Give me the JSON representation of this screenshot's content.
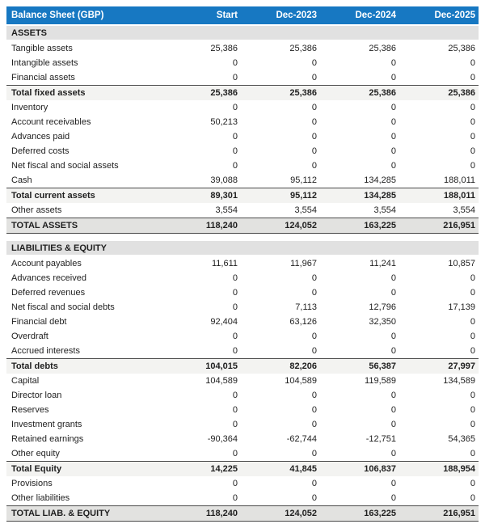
{
  "colors": {
    "header-bg": "#1778c2",
    "header-fg": "#ffffff",
    "section-bg": "#e1e1e1",
    "subtotal-bg": "#f3f3f1",
    "total-bg": "#e2e2e0",
    "rule-dark": "#4a4a4a"
  },
  "table": {
    "title": "Balance Sheet (GBP)",
    "columns": [
      "Start",
      "Dec-2023",
      "Dec-2024",
      "Dec-2025"
    ],
    "sections": [
      {
        "name": "ASSETS",
        "rows": [
          {
            "label": "Tangible assets",
            "type": "item",
            "values": [
              "25,386",
              "25,386",
              "25,386",
              "25,386"
            ]
          },
          {
            "label": "Intangible assets",
            "type": "item",
            "values": [
              "0",
              "0",
              "0",
              "0"
            ]
          },
          {
            "label": "Financial assets",
            "type": "item",
            "values": [
              "0",
              "0",
              "0",
              "0"
            ]
          },
          {
            "label": "Total fixed assets",
            "type": "subtotal",
            "values": [
              "25,386",
              "25,386",
              "25,386",
              "25,386"
            ]
          },
          {
            "label": "Inventory",
            "type": "item",
            "values": [
              "0",
              "0",
              "0",
              "0"
            ]
          },
          {
            "label": "Account receivables",
            "type": "item",
            "values": [
              "50,213",
              "0",
              "0",
              "0"
            ]
          },
          {
            "label": "Advances paid",
            "type": "item",
            "values": [
              "0",
              "0",
              "0",
              "0"
            ]
          },
          {
            "label": "Deferred costs",
            "type": "item",
            "values": [
              "0",
              "0",
              "0",
              "0"
            ]
          },
          {
            "label": "Net fiscal and social assets",
            "type": "item",
            "values": [
              "0",
              "0",
              "0",
              "0"
            ]
          },
          {
            "label": "Cash",
            "type": "item",
            "values": [
              "39,088",
              "95,112",
              "134,285",
              "188,011"
            ]
          },
          {
            "label": "Total current assets",
            "type": "subtotal",
            "values": [
              "89,301",
              "95,112",
              "134,285",
              "188,011"
            ]
          },
          {
            "label": "Other assets",
            "type": "item",
            "values": [
              "3,554",
              "3,554",
              "3,554",
              "3,554"
            ]
          },
          {
            "label": "TOTAL ASSETS",
            "type": "total",
            "values": [
              "118,240",
              "124,052",
              "163,225",
              "216,951"
            ]
          }
        ]
      },
      {
        "name": "LIABILITIES & EQUITY",
        "rows": [
          {
            "label": "Account payables",
            "type": "item",
            "values": [
              "11,611",
              "11,967",
              "11,241",
              "10,857"
            ]
          },
          {
            "label": "Advances received",
            "type": "item",
            "values": [
              "0",
              "0",
              "0",
              "0"
            ]
          },
          {
            "label": "Deferred revenues",
            "type": "item",
            "values": [
              "0",
              "0",
              "0",
              "0"
            ]
          },
          {
            "label": "Net fiscal and social debts",
            "type": "item",
            "values": [
              "0",
              "7,113",
              "12,796",
              "17,139"
            ]
          },
          {
            "label": "Financial debt",
            "type": "item",
            "values": [
              "92,404",
              "63,126",
              "32,350",
              "0"
            ]
          },
          {
            "label": "Overdraft",
            "type": "item",
            "values": [
              "0",
              "0",
              "0",
              "0"
            ]
          },
          {
            "label": "Accrued interests",
            "type": "item",
            "values": [
              "0",
              "0",
              "0",
              "0"
            ]
          },
          {
            "label": "Total debts",
            "type": "subtotal",
            "values": [
              "104,015",
              "82,206",
              "56,387",
              "27,997"
            ]
          },
          {
            "label": "Capital",
            "type": "item",
            "values": [
              "104,589",
              "104,589",
              "119,589",
              "134,589"
            ]
          },
          {
            "label": "Director loan",
            "type": "item",
            "values": [
              "0",
              "0",
              "0",
              "0"
            ]
          },
          {
            "label": "Reserves",
            "type": "item",
            "values": [
              "0",
              "0",
              "0",
              "0"
            ]
          },
          {
            "label": "Investment grants",
            "type": "item",
            "values": [
              "0",
              "0",
              "0",
              "0"
            ]
          },
          {
            "label": "Retained earnings",
            "type": "item",
            "values": [
              "-90,364",
              "-62,744",
              "-12,751",
              "54,365"
            ]
          },
          {
            "label": "Other equity",
            "type": "item",
            "values": [
              "0",
              "0",
              "0",
              "0"
            ]
          },
          {
            "label": "Total Equity",
            "type": "subtotal",
            "values": [
              "14,225",
              "41,845",
              "106,837",
              "188,954"
            ]
          },
          {
            "label": "Provisions",
            "type": "item",
            "values": [
              "0",
              "0",
              "0",
              "0"
            ]
          },
          {
            "label": "Other liabilities",
            "type": "item",
            "values": [
              "0",
              "0",
              "0",
              "0"
            ]
          },
          {
            "label": "TOTAL LIAB. & EQUITY",
            "type": "total",
            "values": [
              "118,240",
              "124,052",
              "163,225",
              "216,951"
            ]
          }
        ]
      }
    ]
  }
}
